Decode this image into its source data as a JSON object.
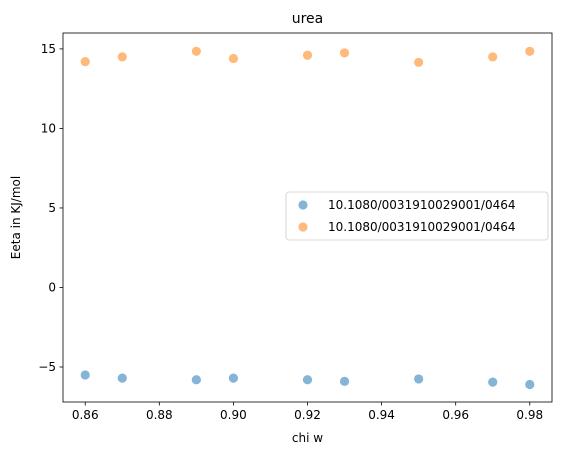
{
  "chart_data": {
    "type": "scatter",
    "title": "urea",
    "xlabel": "chi w",
    "ylabel": "Eeta in KJ/mol",
    "xlim": [
      0.854,
      0.986
    ],
    "ylim": [
      -7.2,
      16.0
    ],
    "xticks": [
      0.86,
      0.88,
      0.9,
      0.92,
      0.94,
      0.96,
      0.98
    ],
    "xtick_labels": [
      "0.86",
      "0.88",
      "0.90",
      "0.92",
      "0.94",
      "0.96",
      "0.98"
    ],
    "yticks": [
      -5,
      0,
      5,
      10,
      15
    ],
    "ytick_labels": [
      "−5",
      "0",
      "5",
      "10",
      "15"
    ],
    "grid": false,
    "legend_position": "center-right",
    "series": [
      {
        "name": "10.1080/0031910029001/0464",
        "color": "#1f77b4",
        "x": [
          0.86,
          0.87,
          0.89,
          0.9,
          0.92,
          0.93,
          0.95,
          0.97,
          0.98
        ],
        "y": [
          -5.5,
          -5.7,
          -5.8,
          -5.7,
          -5.8,
          -5.9,
          -5.75,
          -5.95,
          -6.1
        ]
      },
      {
        "name": "10.1080/0031910029001/0464",
        "color": "#ff7f0e",
        "x": [
          0.86,
          0.87,
          0.89,
          0.9,
          0.92,
          0.93,
          0.95,
          0.97,
          0.98
        ],
        "y": [
          14.2,
          14.5,
          14.85,
          14.4,
          14.6,
          14.75,
          14.15,
          14.5,
          14.85
        ]
      }
    ]
  }
}
